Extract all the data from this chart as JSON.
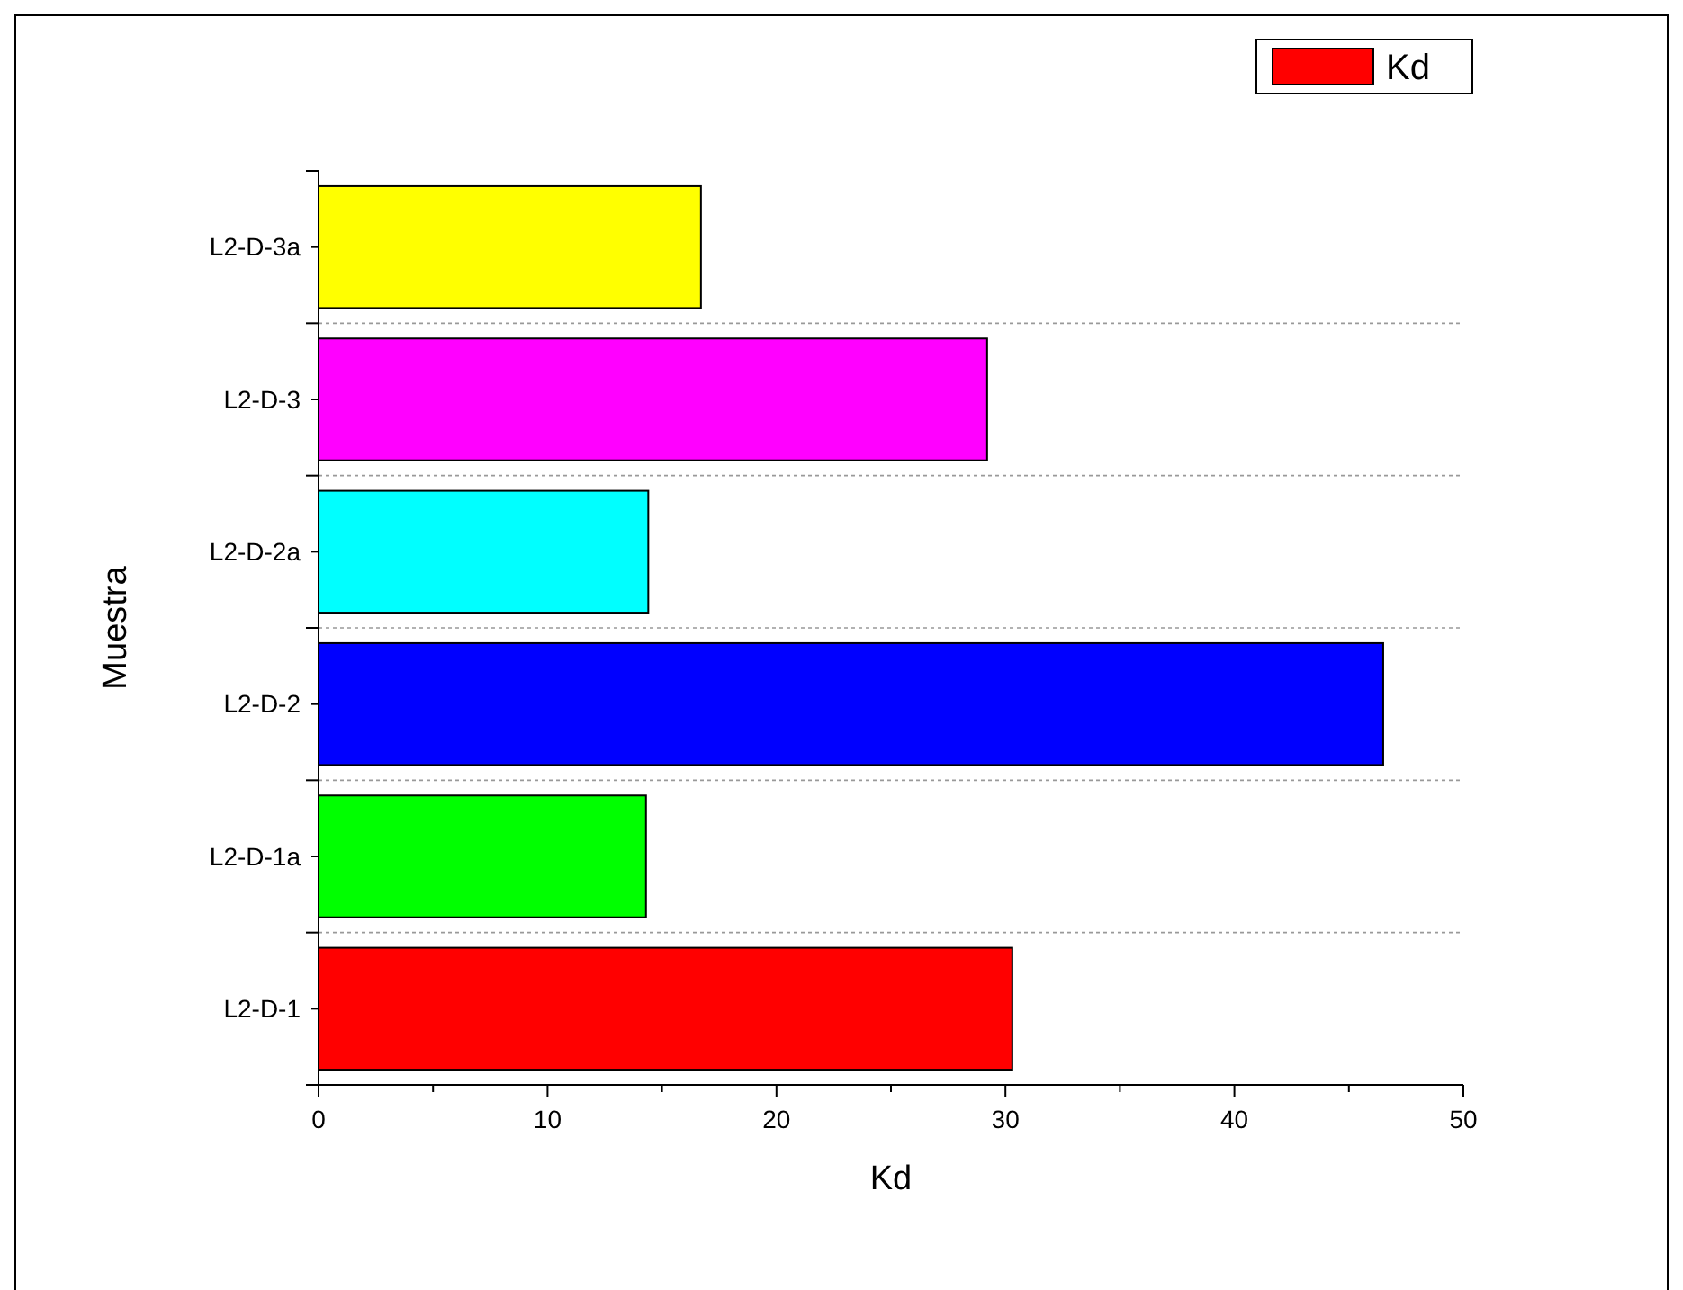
{
  "chart_data": {
    "type": "bar",
    "orientation": "horizontal",
    "xlabel": "Kd",
    "ylabel": "Muestra",
    "categories": [
      "L2-D-3a",
      "L2-D-3",
      "L2-D-2a",
      "L2-D-2",
      "L2-D-1a",
      "L2-D-1"
    ],
    "series": [
      {
        "name": "Kd",
        "colors": [
          "#ffff00",
          "#ff00ff",
          "#00ffff",
          "#0000ff",
          "#00ff00",
          "#ff0000"
        ],
        "values": [
          16.7,
          29.2,
          14.4,
          46.5,
          14.3,
          30.3
        ]
      }
    ],
    "xlim": [
      0,
      50
    ],
    "xticks": [
      0,
      {
        "value": 5,
        "label": null
      },
      10,
      {
        "value": 15,
        "label": null
      },
      20,
      {
        "value": 25,
        "label": null
      },
      30,
      {
        "value": 35,
        "label": null
      },
      40,
      {
        "value": 45,
        "label": null
      },
      50
    ],
    "grid": "y",
    "legend": "top right"
  }
}
